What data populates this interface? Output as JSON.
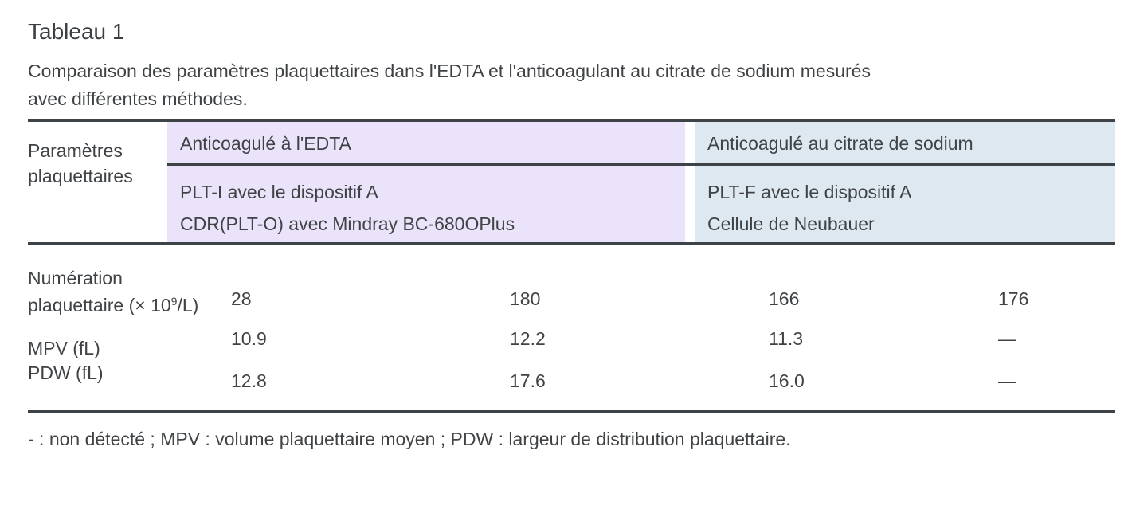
{
  "page": {
    "title": "Tableau 1",
    "caption": {
      "line1": "Comparaison des paramètres plaquettaires dans l'EDTA et l'anticoagulant au citrate de sodium mesurés",
      "line2": "avec différentes méthodes."
    }
  },
  "colors": {
    "edta_panel_bg": "#eae3f9",
    "citrate_panel_bg": "#dee8f1",
    "rule": "#3e4347",
    "text": "#3f4346"
  },
  "table": {
    "row_header": {
      "line1": "Paramètres",
      "line2": "plaquettaires"
    },
    "groups": [
      {
        "label": "Anticoagulé à l'EDTA",
        "method1": "PLT-I avec le dispositif A",
        "method2": "CDR(PLT-O) avec Mindray BC-680OPlus"
      },
      {
        "label": "Anticoagulé au citrate de sodium",
        "method1": "PLT-F avec le dispositif A",
        "method2": "Cellule de Neubauer"
      }
    ],
    "rows": [
      {
        "label_line1": "Numération",
        "label_line2_pre": "plaquettaire (× 10",
        "label_sup": "9",
        "label_line2_post": "/L)",
        "values": [
          "28",
          "180",
          "166",
          "176"
        ]
      },
      {
        "label": "MPV (fL)",
        "values": [
          "10.9",
          "12.2",
          "11.3",
          "—"
        ]
      },
      {
        "label": "PDW (fL)",
        "values": [
          "12.8",
          "17.6",
          "16.0",
          "—"
        ]
      }
    ],
    "footnote": "- : non détecté ; MPV : volume plaquettaire moyen ; PDW : largeur de distribution plaquettaire."
  },
  "chart_data": {
    "type": "table",
    "title": "Tableau 1",
    "caption": "Comparaison des paramètres plaquettaires dans l'EDTA et l'anticoagulant au citrate de sodium mesurés avec différentes méthodes.",
    "column_groups": [
      {
        "group": "Anticoagulé à l'EDTA",
        "columns": [
          "PLT-I avec le dispositif A",
          "CDR(PLT-O) avec Mindray BC-680OPlus"
        ]
      },
      {
        "group": "Anticoagulé au citrate de sodium",
        "columns": [
          "PLT-F avec le dispositif A",
          "Cellule de Neubauer"
        ]
      }
    ],
    "rows": [
      {
        "parameter": "Numération plaquettaire (× 10⁹/L)",
        "values": [
          28,
          180,
          166,
          176
        ]
      },
      {
        "parameter": "MPV (fL)",
        "values": [
          10.9,
          12.2,
          11.3,
          null
        ]
      },
      {
        "parameter": "PDW (fL)",
        "values": [
          12.8,
          17.6,
          16.0,
          null
        ]
      }
    ],
    "footnote": "- : non détecté ; MPV : volume plaquettaire moyen ; PDW : largeur de distribution plaquettaire."
  }
}
